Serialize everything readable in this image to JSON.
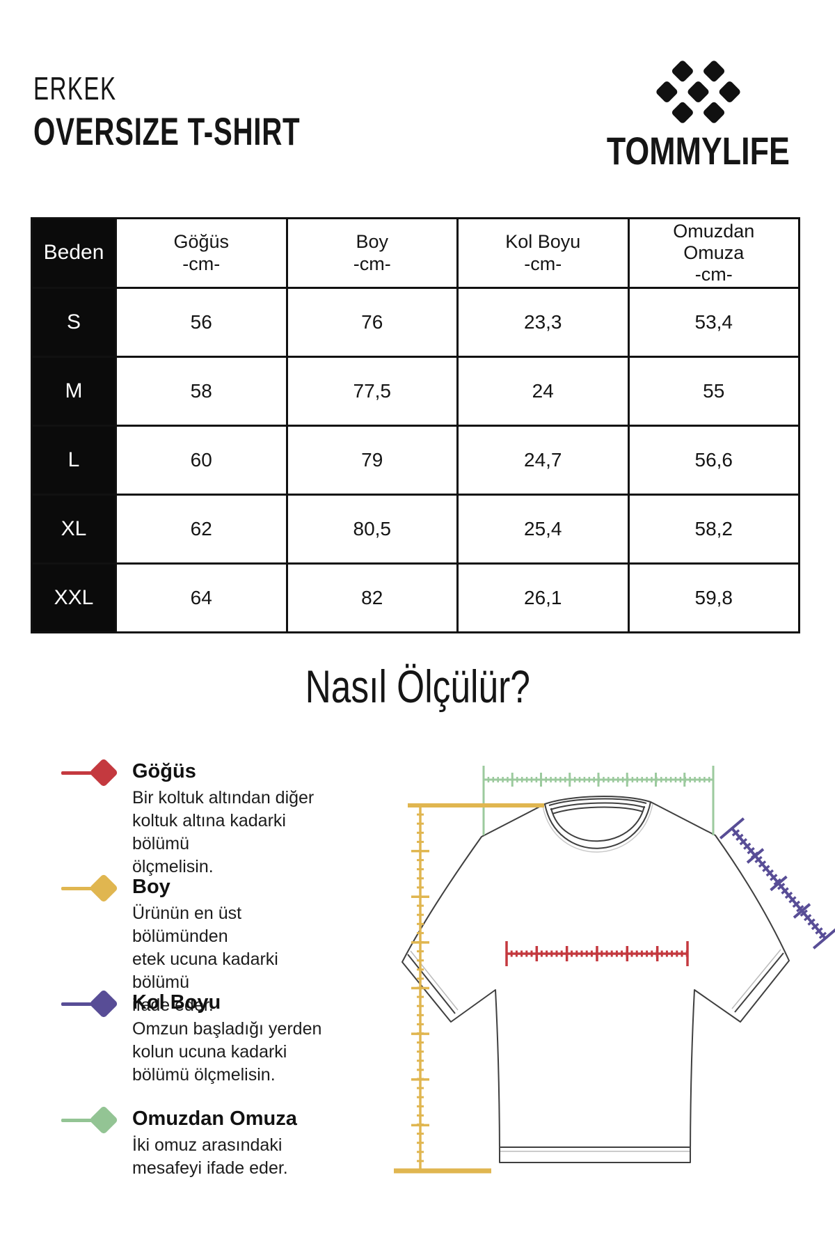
{
  "header": {
    "category": "ERKEK",
    "product": "OVERSIZE T-SHIRT",
    "brand": "TOMMYLIFE",
    "logo_icon": "diamond-grid-logo"
  },
  "table": {
    "size_label": "Beden",
    "columns": [
      "Göğüs\n-cm-",
      "Boy\n-cm-",
      "Kol Boyu\n-cm-",
      "Omuzdan\nOmuza\n-cm-"
    ],
    "rows": [
      {
        "size": "S",
        "values": [
          "56",
          "76",
          "23,3",
          "53,4"
        ]
      },
      {
        "size": "M",
        "values": [
          "58",
          "77,5",
          "24",
          "55"
        ]
      },
      {
        "size": "L",
        "values": [
          "60",
          "79",
          "24,7",
          "56,6"
        ]
      },
      {
        "size": "XL",
        "values": [
          "62",
          "80,5",
          "25,4",
          "58,2"
        ]
      },
      {
        "size": "XXL",
        "values": [
          "64",
          "82",
          "26,1",
          "59,8"
        ]
      }
    ]
  },
  "how_to": {
    "title": "Nasıl Ölçülür?"
  },
  "legend": {
    "items": [
      {
        "name": "Göğüs",
        "color": "#c4393f",
        "desc": "Bir koltuk altından diğer\nkoltuk altına kadarki bölümü\nölçmelisin."
      },
      {
        "name": "Boy",
        "color": "#e0b650",
        "desc": "Ürünün en üst bölümünden\netek ucuna kadarki bölümü\nifade eder."
      },
      {
        "name": "Kol Boyu",
        "color": "#584d96",
        "desc": "Omzun başladığı yerden\nkolun ucuna kadarki\nbölümü ölçmelisin."
      },
      {
        "name": "Omuzdan Omuza",
        "color": "#93c494",
        "desc": "İki omuz arasındaki\nmesafeyi ifade eder."
      }
    ]
  },
  "diagram": {
    "ruler_colors": {
      "shoulder": "#9cca9e",
      "length": "#e0b650",
      "chest": "#c4393f",
      "sleeve": "#584d96"
    },
    "shirt_outline_color": "#3f3f3f"
  }
}
